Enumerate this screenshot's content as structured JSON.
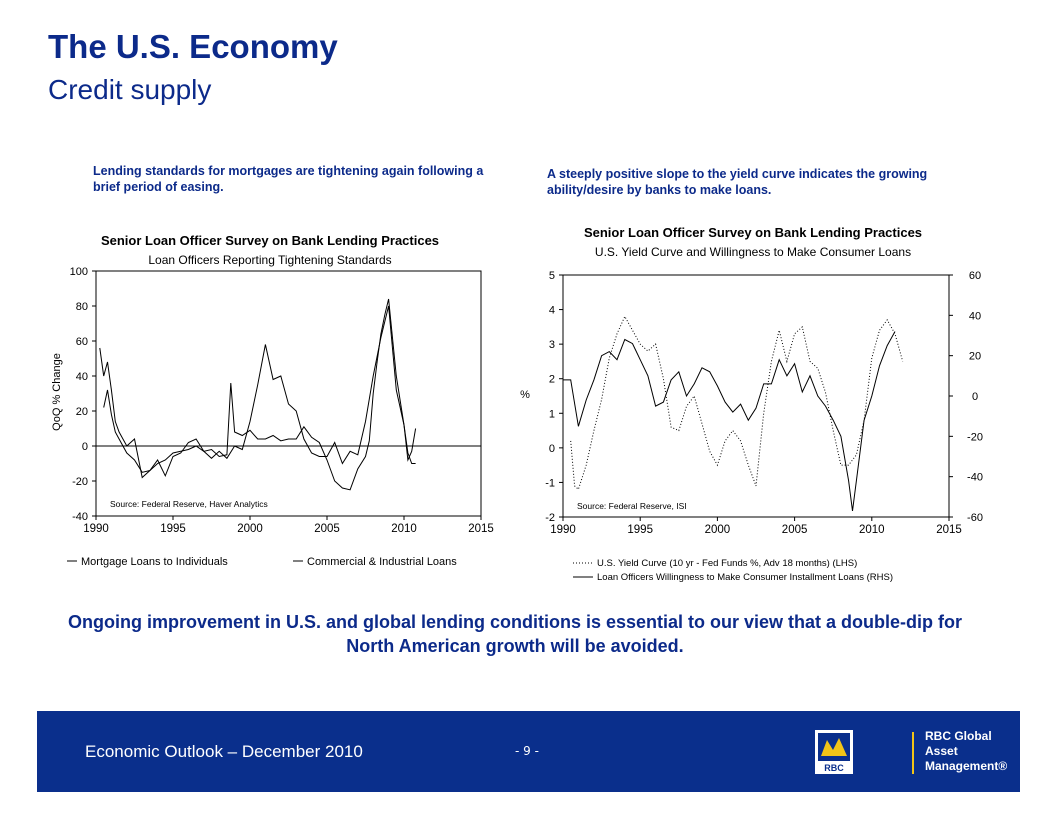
{
  "header": {
    "title": "The U.S. Economy",
    "subtitle": "Credit supply"
  },
  "captions": {
    "left": "Lending standards for mortgages are tightening again following a brief period of easing.",
    "right": "A steeply positive slope to the yield curve indicates the growing ability/desire by banks to make loans."
  },
  "conclusion": "Ongoing improvement in U.S. and global lending conditions is essential to our view that a double-dip for North American growth will be avoided.",
  "footer": {
    "text": "Economic Outlook – December 2010",
    "page": "- 9 -",
    "logo_text": "RBC",
    "brand_line1": "RBC Global",
    "brand_line2": "Asset Management®"
  },
  "colors": {
    "brand_blue": "#0a2f8c",
    "title_blue": "#0c2a8a"
  },
  "chart_data": [
    {
      "type": "line",
      "title": "Senior Loan Officer Survey on Bank Lending Practices",
      "subtitle": "Loan Officers Reporting Tightening Standards",
      "ylabel": "QoQ % Change",
      "xlim": [
        1990,
        2015
      ],
      "ylim": [
        -40,
        100
      ],
      "xticks": [
        1990,
        1995,
        2000,
        2005,
        2010,
        2015
      ],
      "yticks": [
        -40,
        -20,
        0,
        20,
        40,
        60,
        80,
        100
      ],
      "source": "Source: Federal Reserve, Haver Analytics",
      "legend_position": "bottom",
      "grid": false,
      "series": [
        {
          "name": "Mortgage Loans to Individuals",
          "x": [
            1990.5,
            1990.75,
            1991,
            1991.25,
            1991.5,
            1992,
            1992.5,
            1993,
            1993.5,
            1994,
            1994.5,
            1995,
            1995.5,
            1996,
            1996.5,
            1997,
            1997.5,
            1998,
            1998.5,
            1998.75,
            1999,
            1999.5,
            2000,
            2000.5,
            2001,
            2001.5,
            2002,
            2002.5,
            2003,
            2003.5,
            2004,
            2004.5,
            2005,
            2005.5,
            2006,
            2006.5,
            2007,
            2007.5,
            2007.75,
            2008,
            2008.25,
            2008.5,
            2008.75,
            2009,
            2009.5,
            2010,
            2010.25,
            2010.5,
            2010.75
          ],
          "values": [
            22,
            32,
            18,
            8,
            4,
            -4,
            -8,
            -15,
            -14,
            -10,
            -8,
            -4,
            -3,
            -2,
            0,
            -3,
            -2,
            -6,
            -5,
            36,
            8,
            6,
            9,
            4,
            4,
            6,
            3,
            4,
            4,
            11,
            5,
            2,
            -8,
            -20,
            -24,
            -25,
            -13,
            -6,
            3,
            30,
            48,
            64,
            75,
            84,
            40,
            12,
            -4,
            -10,
            -10
          ]
        },
        {
          "name": "Commercial & Industrial Loans",
          "x": [
            1990.25,
            1990.5,
            1990.75,
            1991,
            1991.25,
            1991.5,
            1992,
            1992.5,
            1993,
            1993.5,
            1994,
            1994.5,
            1995,
            1995.5,
            1996,
            1996.5,
            1997,
            1997.5,
            1998,
            1998.5,
            1999,
            1999.5,
            2000,
            2000.5,
            2001,
            2001.5,
            2002,
            2002.5,
            2003,
            2003.5,
            2004,
            2004.5,
            2005,
            2005.5,
            2006,
            2006.5,
            2007,
            2007.5,
            2008,
            2008.5,
            2009,
            2009.5,
            2010,
            2010.25,
            2010.5,
            2010.75
          ],
          "values": [
            56,
            40,
            48,
            32,
            14,
            8,
            0,
            4,
            -18,
            -14,
            -8,
            -17,
            -6,
            -4,
            2,
            4,
            -3,
            -7,
            -3,
            -7,
            0,
            -2,
            14,
            35,
            58,
            38,
            40,
            24,
            20,
            4,
            -4,
            -6,
            -6,
            2,
            -10,
            -3,
            -5,
            14,
            40,
            62,
            80,
            32,
            12,
            -8,
            -3,
            10
          ]
        }
      ]
    },
    {
      "type": "line",
      "title": "Senior Loan Officer Survey on Bank Lending Practices",
      "subtitle": "U.S. Yield Curve and Willingness to Make Consumer Loans",
      "ylabel": "%",
      "xlim": [
        1990,
        2015
      ],
      "ylim": [
        -2,
        5
      ],
      "y2lim": [
        -60,
        60
      ],
      "xticks": [
        1990,
        1995,
        2000,
        2005,
        2010,
        2015
      ],
      "yticks": [
        -2,
        -1,
        0,
        1,
        2,
        3,
        4,
        5
      ],
      "y2ticks": [
        -60,
        -40,
        -20,
        0,
        20,
        40,
        60
      ],
      "source": "Source: Federal Reserve, ISI",
      "legend_position": "bottom",
      "grid": false,
      "series": [
        {
          "name": "U.S. Yield Curve (10 yr - Fed Funds %, Adv 18 months) (LHS)",
          "axis": "left",
          "style": "dotted",
          "x": [
            1990.5,
            1990.75,
            1991,
            1991.5,
            1992,
            1992.5,
            1993,
            1993.5,
            1994,
            1994.5,
            1995,
            1995.5,
            1996,
            1996.5,
            1997,
            1997.5,
            1998,
            1998.5,
            1999,
            1999.5,
            2000,
            2000.5,
            2001,
            2001.5,
            2002,
            2002.5,
            2003,
            2003.5,
            2004,
            2004.5,
            2005,
            2005.5,
            2006,
            2006.5,
            2007,
            2007.5,
            2008,
            2008.5,
            2009,
            2009.5,
            2010,
            2010.5,
            2011,
            2011.5,
            2012
          ],
          "values": [
            0.2,
            -1.1,
            -1.2,
            -0.5,
            0.5,
            1.4,
            2.6,
            3.3,
            3.8,
            3.4,
            3.0,
            2.8,
            3.0,
            2.0,
            0.6,
            0.5,
            1.2,
            1.5,
            0.7,
            -0.1,
            -0.5,
            0.2,
            0.5,
            0.2,
            -0.5,
            -1.1,
            1.0,
            2.5,
            3.4,
            2.5,
            3.3,
            3.5,
            2.5,
            2.3,
            1.6,
            0.5,
            -0.5,
            -0.5,
            -0.2,
            0.8,
            2.6,
            3.4,
            3.7,
            3.3,
            2.5
          ]
        },
        {
          "name": "Loan Officers Willingness to Make Consumer Installment Loans (RHS)",
          "axis": "right",
          "style": "solid",
          "x": [
            1990,
            1990.5,
            1991,
            1991.5,
            1992,
            1992.5,
            1993,
            1993.5,
            1994,
            1994.5,
            1995,
            1995.5,
            1996,
            1996.5,
            1997,
            1997.5,
            1998,
            1998.5,
            1999,
            1999.5,
            2000,
            2000.5,
            2001,
            2001.5,
            2002,
            2002.5,
            2003,
            2003.5,
            2004,
            2004.5,
            2005,
            2005.5,
            2006,
            2006.5,
            2007,
            2007.5,
            2008,
            2008.5,
            2008.75,
            2009,
            2009.5,
            2010,
            2010.5,
            2011,
            2011.5
          ],
          "values": [
            8,
            8,
            -15,
            -2,
            8,
            20,
            22,
            18,
            28,
            26,
            18,
            10,
            -5,
            -3,
            8,
            12,
            0,
            6,
            14,
            12,
            5,
            -3,
            -8,
            -4,
            -12,
            -6,
            6,
            6,
            18,
            10,
            16,
            2,
            10,
            0,
            -5,
            -12,
            -20,
            -42,
            -57,
            -42,
            -12,
            0,
            15,
            25,
            32
          ]
        }
      ]
    }
  ]
}
